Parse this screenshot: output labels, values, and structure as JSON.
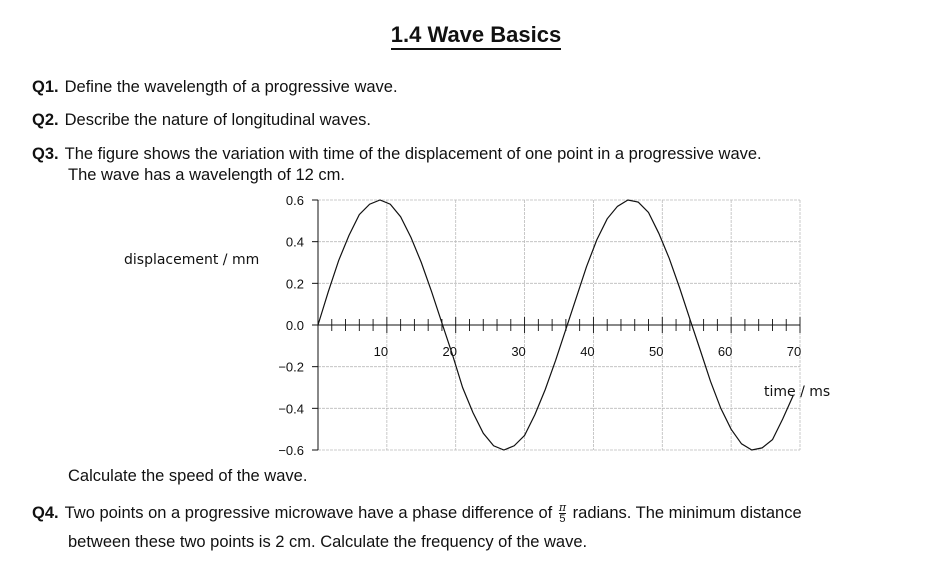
{
  "title": "1.4 Wave Basics",
  "questions": {
    "q1": {
      "num": "Q1.",
      "text": "Define the wavelength of a progressive wave."
    },
    "q2": {
      "num": "Q2.",
      "text": "Describe the nature of longitudinal waves."
    },
    "q3": {
      "num": "Q3.",
      "line1": "The figure shows the variation with time of the displacement of one point in a progressive wave.",
      "line2": "The wave has a wavelength of 12 cm.",
      "after": "Calculate the speed of the wave."
    },
    "q4": {
      "num": "Q4.",
      "pre": "Two points on a progressive microwave have a phase difference of",
      "frac_num": "π",
      "frac_den": "5",
      "post": "radians. The minimum distance",
      "line2": "between these two points is 2 cm. Calculate the frequency of the wave."
    }
  },
  "chart_data": {
    "type": "line",
    "ylabel": "displacement / mm",
    "xlabel": "time / ms",
    "xlim": [
      0,
      70
    ],
    "ylim": [
      -0.6,
      0.6
    ],
    "x_ticks": [
      "10",
      "20",
      "30",
      "40",
      "50",
      "60",
      "70"
    ],
    "y_ticks": [
      "0.6",
      "0.4",
      "0.2",
      "0.0",
      "−0.2",
      "−0.4",
      "−0.6"
    ],
    "grid": true,
    "series": [
      {
        "amplitude": 0.6,
        "period_ms": 35,
        "x": [
          0,
          1.5,
          3,
          4.5,
          6,
          7.5,
          9,
          10.5,
          12,
          13.5,
          15,
          16.5,
          18,
          19.5,
          21,
          22.5,
          24,
          25.5,
          27,
          28.5,
          30,
          31.5,
          33,
          34.5,
          36,
          37.5,
          39,
          40.5,
          42,
          43.5,
          45,
          46.5,
          48,
          49.5,
          51,
          52.5,
          54,
          55.5,
          57,
          58.5,
          60,
          61.5,
          63,
          64.5,
          66,
          67.5,
          69
        ],
        "y": [
          0.0,
          0.16,
          0.31,
          0.43,
          0.53,
          0.58,
          0.6,
          0.58,
          0.52,
          0.42,
          0.3,
          0.16,
          0.01,
          -0.14,
          -0.3,
          -0.42,
          -0.52,
          -0.58,
          -0.6,
          -0.58,
          -0.53,
          -0.43,
          -0.31,
          -0.17,
          -0.02,
          0.13,
          0.28,
          0.41,
          0.51,
          0.57,
          0.6,
          0.59,
          0.54,
          0.44,
          0.32,
          0.18,
          0.03,
          -0.12,
          -0.27,
          -0.4,
          -0.5,
          -0.57,
          -0.6,
          -0.59,
          -0.55,
          -0.45,
          -0.34
        ]
      }
    ]
  }
}
